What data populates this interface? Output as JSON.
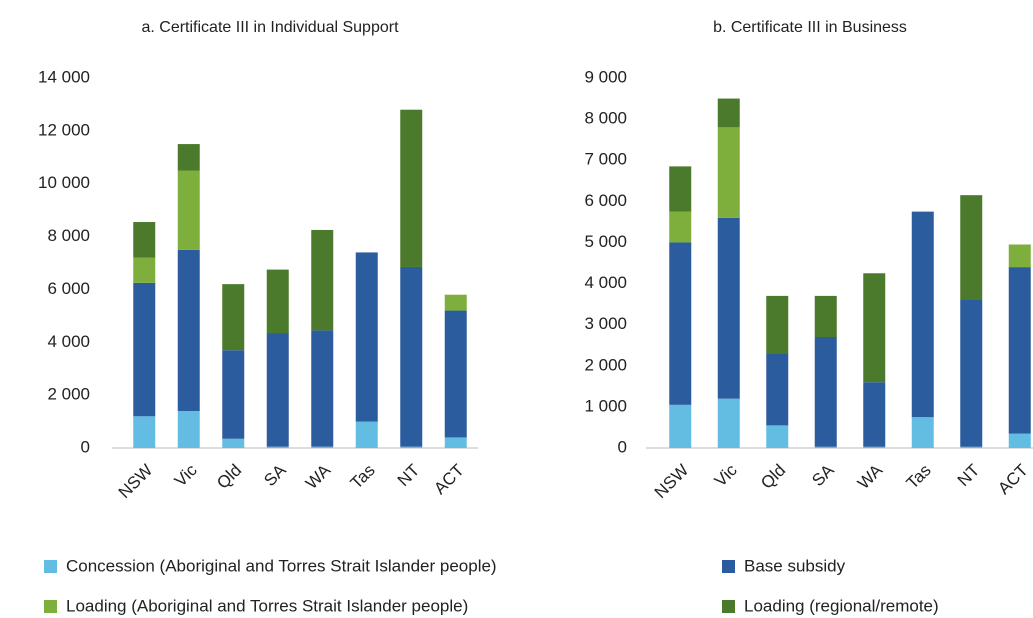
{
  "chart_data": [
    {
      "type": "bar",
      "stacked": true,
      "title": "a. Certificate III in Individual Support",
      "categories": [
        "NSW",
        "Vic",
        "Qld",
        "SA",
        "WA",
        "Tas",
        "NT",
        "ACT"
      ],
      "series": [
        {
          "name": "Concession (Aboriginal and Torres Strait Islander people)",
          "color": "#63bde3",
          "values": [
            1200,
            1400,
            350,
            50,
            50,
            1000,
            50,
            400
          ]
        },
        {
          "name": "Base subsidy",
          "color": "#2b5c9e",
          "values": [
            5050,
            6100,
            3350,
            4300,
            4400,
            6400,
            6800,
            4800
          ]
        },
        {
          "name": "Loading (Aboriginal and Torres Strait Islander people)",
          "color": "#7eae3b",
          "values": [
            950,
            3000,
            0,
            0,
            0,
            0,
            0,
            600
          ]
        },
        {
          "name": "Loading (regional/remote)",
          "color": "#4b7a2c",
          "values": [
            1350,
            1000,
            2500,
            2400,
            3800,
            0,
            5950,
            0
          ]
        }
      ],
      "ylim": [
        0,
        14000
      ],
      "yticks": [
        0,
        {
          "value": 2000,
          "label": "2 000"
        },
        {
          "value": 4000,
          "label": "4 000"
        },
        {
          "value": 6000,
          "label": "6 000"
        },
        {
          "value": 8000,
          "label": "8 000"
        },
        {
          "value": 10000,
          "label": "10 000"
        },
        {
          "value": 12000,
          "label": "12 000"
        },
        {
          "value": 14000,
          "label": "14 000"
        }
      ]
    },
    {
      "type": "bar",
      "stacked": true,
      "title": "b. Certificate III in Business",
      "categories": [
        "NSW",
        "Vic",
        "Qld",
        "SA",
        "WA",
        "Tas",
        "NT",
        "ACT"
      ],
      "series": [
        {
          "name": "Concession (Aboriginal and Torres Strait Islander people)",
          "color": "#63bde3",
          "values": [
            1050,
            1200,
            550,
            30,
            30,
            750,
            30,
            350
          ]
        },
        {
          "name": "Base subsidy",
          "color": "#2b5c9e",
          "values": [
            3950,
            4400,
            1750,
            2670,
            1570,
            5000,
            3570,
            4050
          ]
        },
        {
          "name": "Loading (Aboriginal and Torres Strait Islander people)",
          "color": "#7eae3b",
          "values": [
            750,
            2200,
            0,
            0,
            0,
            0,
            0,
            550
          ]
        },
        {
          "name": "Loading (regional/remote)",
          "color": "#4b7a2c",
          "values": [
            1100,
            700,
            1400,
            1000,
            2650,
            0,
            2550,
            0
          ]
        }
      ],
      "ylim": [
        0,
        9000
      ],
      "yticks": [
        0,
        {
          "value": 1000,
          "label": "1 000"
        },
        {
          "value": 2000,
          "label": "2 000"
        },
        {
          "value": 3000,
          "label": "3 000"
        },
        {
          "value": 4000,
          "label": "4 000"
        },
        {
          "value": 5000,
          "label": "5 000"
        },
        {
          "value": 6000,
          "label": "6 000"
        },
        {
          "value": 7000,
          "label": "7 000"
        },
        {
          "value": 8000,
          "label": "8 000"
        },
        {
          "value": 9000,
          "label": "9 000"
        }
      ]
    }
  ]
}
